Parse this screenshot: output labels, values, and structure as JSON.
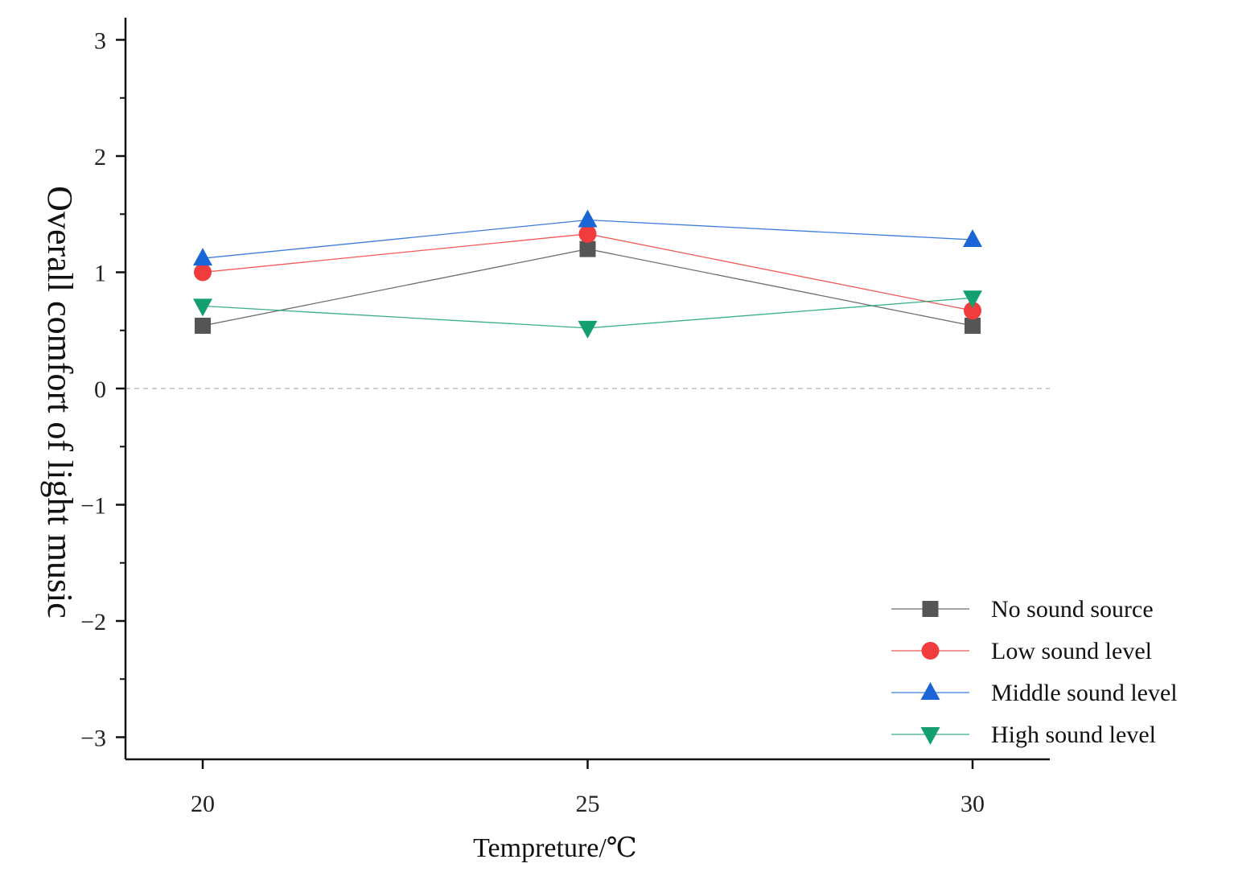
{
  "chart_data": {
    "type": "line",
    "title": "",
    "xlabel": "Tempreture/℃",
    "ylabel": "Overall comfort of light music",
    "x": [
      20,
      25,
      30
    ],
    "x_tick_labels": [
      "20",
      "25",
      "30"
    ],
    "ylim": [
      -3.2,
      3.3
    ],
    "y_ticks": [
      -3,
      -2,
      -1,
      0,
      1,
      2,
      3
    ],
    "y_tick_labels": [
      "−3",
      "−2",
      "−1",
      "0",
      "1",
      "2",
      "3"
    ],
    "zero_reference_line": true,
    "grid": false,
    "legend_position": "bottom-right",
    "series": [
      {
        "name": "No sound source",
        "marker": "square",
        "color": "#555555",
        "values": [
          0.54,
          1.2,
          0.54
        ]
      },
      {
        "name": "Low sound level",
        "marker": "circle",
        "color": "#f03c3c",
        "values": [
          1.0,
          1.33,
          0.67
        ]
      },
      {
        "name": "Middle sound level",
        "marker": "triangle-up",
        "color": "#1a66d6",
        "values": [
          1.12,
          1.45,
          1.28
        ]
      },
      {
        "name": "High sound level",
        "marker": "triangle-down",
        "color": "#14a06e",
        "values": [
          0.71,
          0.52,
          0.78
        ]
      }
    ]
  }
}
